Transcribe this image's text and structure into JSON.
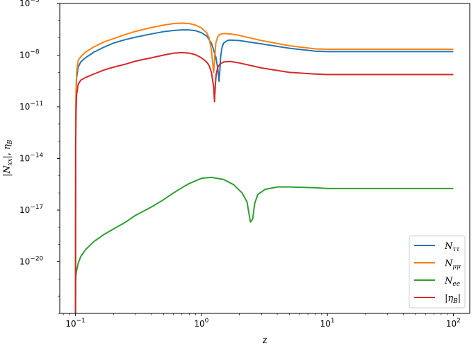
{
  "chart_data": {
    "type": "line",
    "xlabel": "z",
    "ylabel": "|N_xx|, η_B",
    "xscale": "log",
    "yscale": "log",
    "xlim": [
      0.075,
      135
    ],
    "ylim": [
      1e-23,
      1e-05
    ],
    "grid": false,
    "legend_position": "lower-right",
    "x_ticks": [
      {
        "value": 0.1,
        "base": "10",
        "exp": "−1"
      },
      {
        "value": 1,
        "base": "10",
        "exp": "0"
      },
      {
        "value": 10,
        "base": "10",
        "exp": "1"
      },
      {
        "value": 100,
        "base": "10",
        "exp": "2"
      }
    ],
    "y_ticks": [
      {
        "value": 1e-20,
        "base": "10",
        "exp": "−20"
      },
      {
        "value": 1e-17,
        "base": "10",
        "exp": "−17"
      },
      {
        "value": 1e-14,
        "base": "10",
        "exp": "−14"
      },
      {
        "value": 1e-11,
        "base": "10",
        "exp": "−11"
      },
      {
        "value": 1e-08,
        "base": "10",
        "exp": "−8"
      },
      {
        "value": 1e-05,
        "base": "10",
        "exp": "−5"
      }
    ],
    "series": [
      {
        "name": "N_ττ",
        "legend_main": "N",
        "legend_sub": "ττ",
        "color": "#1f77b4",
        "x": [
          0.1,
          0.1004,
          0.101,
          0.102,
          0.105,
          0.11,
          0.12,
          0.14,
          0.17,
          0.2,
          0.25,
          0.3,
          0.4,
          0.5,
          0.6,
          0.7,
          0.8,
          0.9,
          1.0,
          1.1,
          1.2,
          1.3,
          1.35,
          1.38,
          1.4,
          1.42,
          1.46,
          1.5,
          1.6,
          1.7,
          2.0,
          3.0,
          5.0,
          8.0,
          10,
          20,
          50,
          100
        ],
        "y": [
          1e-23,
          1e-12,
          5e-11,
          5e-10,
          2e-09,
          4e-09,
          7e-09,
          1.5e-08,
          3e-08,
          5e-08,
          8e-08,
          1.1e-07,
          1.7e-07,
          2.3e-07,
          2.7e-07,
          2.9e-07,
          2.9e-07,
          2.6e-07,
          2e-07,
          1.3e-07,
          5e-08,
          8e-09,
          1.5e-09,
          3e-10,
          1.2e-09,
          8e-09,
          3e-08,
          5e-08,
          7e-08,
          7.5e-08,
          7e-08,
          4.5e-08,
          2.5e-08,
          1.7e-08,
          1.6e-08,
          1.6e-08,
          1.6e-08,
          1.6e-08
        ]
      },
      {
        "name": "N_μμ",
        "legend_main": "N",
        "legend_sub": "μμ",
        "color": "#ff7f0e",
        "x": [
          0.1,
          0.1004,
          0.101,
          0.102,
          0.105,
          0.11,
          0.12,
          0.14,
          0.17,
          0.2,
          0.25,
          0.3,
          0.4,
          0.5,
          0.6,
          0.7,
          0.8,
          0.9,
          1.0,
          1.1,
          1.15,
          1.2,
          1.23,
          1.25,
          1.27,
          1.3,
          1.35,
          1.4,
          1.5,
          1.7,
          2.0,
          3.0,
          5.0,
          8.0,
          10,
          20,
          50,
          100
        ],
        "y": [
          1e-23,
          1e-12,
          1e-10,
          1e-09,
          5e-09,
          8e-09,
          1.5e-08,
          3e-08,
          6e-08,
          9e-08,
          1.6e-07,
          2.4e-07,
          4e-07,
          5.5e-07,
          6.8e-07,
          7.2e-07,
          6.8e-07,
          5.5e-07,
          3.8e-07,
          2e-07,
          1e-07,
          2e-08,
          3e-09,
          1e-09,
          5e-09,
          5e-08,
          1.2e-07,
          1.6e-07,
          1.8e-07,
          1.7e-07,
          1.4e-07,
          7e-08,
          3.5e-08,
          2.3e-08,
          2.2e-08,
          2.2e-08,
          2.2e-08,
          2.2e-08
        ]
      },
      {
        "name": "N_ee",
        "legend_main": "N",
        "legend_sub": "ee",
        "color": "#2ca02c",
        "x": [
          0.1,
          0.1003,
          0.1007,
          0.102,
          0.105,
          0.11,
          0.12,
          0.14,
          0.17,
          0.2,
          0.25,
          0.3,
          0.4,
          0.5,
          0.6,
          0.7,
          0.8,
          1.0,
          1.2,
          1.5,
          1.8,
          2.1,
          2.3,
          2.45,
          2.55,
          2.65,
          2.8,
          3.2,
          4.0,
          5.0,
          8.0,
          10,
          20,
          50,
          100
        ],
        "y": [
          1e-23,
          5e-22,
          1.5e-21,
          3e-21,
          8e-21,
          2e-20,
          5e-20,
          1.5e-19,
          4e-19,
          8e-19,
          2e-18,
          5e-18,
          1.5e-17,
          4e-17,
          1e-16,
          2e-16,
          3.5e-16,
          7e-16,
          8e-16,
          6e-16,
          3e-16,
          1e-16,
          3e-17,
          2e-18,
          3e-18,
          2.5e-17,
          8e-17,
          1.6e-16,
          2.2e-16,
          2.2e-16,
          2e-16,
          1.8e-16,
          1.8e-16,
          1.8e-16,
          1.8e-16
        ]
      },
      {
        "name": "|η_B|",
        "legend_main": "|η",
        "legend_sub": "B",
        "legend_suffix": "|",
        "color": "#d62728",
        "x": [
          0.1,
          0.1004,
          0.101,
          0.102,
          0.105,
          0.11,
          0.12,
          0.14,
          0.17,
          0.2,
          0.25,
          0.3,
          0.4,
          0.5,
          0.6,
          0.7,
          0.8,
          0.9,
          1.0,
          1.1,
          1.15,
          1.2,
          1.25,
          1.27,
          1.29,
          1.31,
          1.35,
          1.4,
          1.5,
          1.7,
          2.0,
          3.0,
          5.0,
          8.0,
          10,
          20,
          50,
          100
        ],
        "y": [
          1e-23,
          1e-13,
          5e-12,
          5e-11,
          2e-10,
          3.5e-10,
          5e-10,
          8e-10,
          1.4e-09,
          2e-09,
          3e-09,
          4.5e-09,
          7e-09,
          1e-08,
          1.3e-08,
          1.4e-08,
          1.3e-08,
          1.05e-08,
          7e-09,
          4e-09,
          2.5e-09,
          1e-09,
          1.5e-10,
          2e-11,
          2e-10,
          8e-10,
          2e-09,
          3e-09,
          4e-09,
          4.3e-09,
          3.5e-09,
          1.8e-09,
          1e-09,
          8e-10,
          7.5e-10,
          7.5e-10,
          7.5e-10,
          7.5e-10
        ]
      }
    ]
  }
}
